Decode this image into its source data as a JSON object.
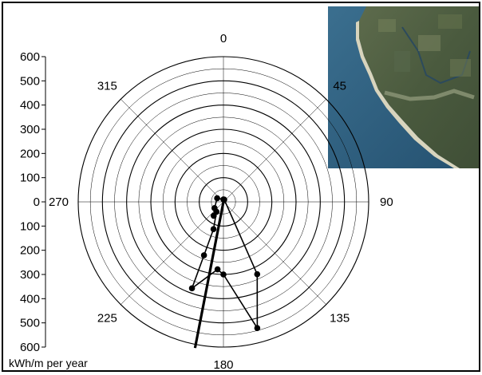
{
  "chart_data": {
    "type": "polar-line",
    "unit_label": "kWh/m per year",
    "angle_labels": [
      "0",
      "45",
      "90",
      "135",
      "180",
      "225",
      "270",
      "315"
    ],
    "angles": [
      0,
      45,
      90,
      135,
      180,
      225,
      270,
      315
    ],
    "radial_tick_labels": [
      "600",
      "500",
      "400",
      "300",
      "200",
      "100",
      "0",
      "100",
      "200",
      "300",
      "400",
      "500",
      "600"
    ],
    "radial_range": [
      0,
      600
    ],
    "rings": [
      50,
      100,
      150,
      200,
      250,
      300,
      350,
      400,
      450,
      500,
      550,
      600
    ],
    "grid": true,
    "series": [
      {
        "points": [
          {
            "angle": 0,
            "r": 10
          },
          {
            "angle": 300,
            "r": 30
          },
          {
            "angle": 235,
            "r": 45
          },
          {
            "angle": 215,
            "r": 70
          },
          {
            "angle": 215,
            "r": 50
          },
          {
            "angle": 200,
            "r": 120
          },
          {
            "angle": 200,
            "r": 235
          },
          {
            "angle": 200,
            "r": 380
          },
          {
            "angle": 185,
            "r": 280
          },
          {
            "angle": 180,
            "r": 300
          },
          {
            "angle": 165,
            "r": 540
          },
          {
            "angle": 155,
            "r": 330
          },
          {
            "angle": 20,
            "r": 10
          }
        ]
      }
    ],
    "resultant": {
      "angle": 191,
      "r": 615
    }
  },
  "inset": {
    "kind": "satellite-photo",
    "colors": {
      "sea": "#2f5f80",
      "land": "#4e5c42",
      "beach": "#d9d5c2"
    }
  },
  "colors": {
    "axis": "#000000",
    "grid": "#000000",
    "background": "#ffffff"
  }
}
